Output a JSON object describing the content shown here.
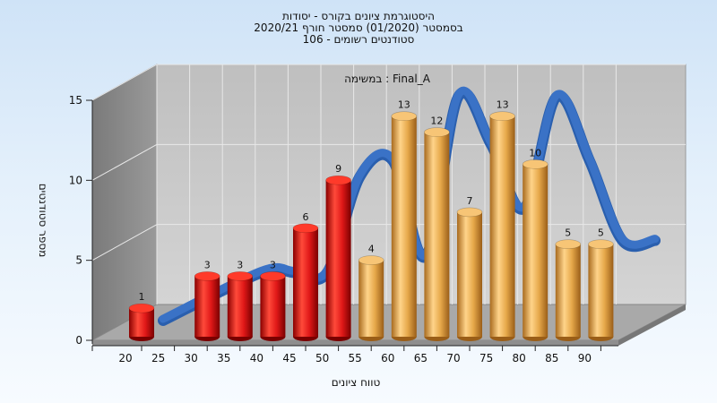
{
  "title_lines": [
    "היסטוגרמת ציונים בקורס - יסודות",
    "בסמסטר  (01/2020)  סמסטר חורף  2020/21",
    "סטודנטים רשומים - 106"
  ],
  "colors": {
    "below_threshold": "#e01818",
    "above_threshold": "#e6a84a",
    "curve": "#3a72c6",
    "wall": "#c6c6c6",
    "side_wall": "#8c8c8c",
    "floor": "#a9a9a9"
  },
  "chart_data": {
    "type": "bar",
    "annotation": "במשימה : Final_A",
    "xlabel": "טווח ציונים",
    "ylabel": "מספר סטודנטים",
    "ylim": [
      0,
      15
    ],
    "yticks": [
      "0",
      "5",
      "10",
      "15"
    ],
    "xticks": [
      "20",
      "25",
      "30",
      "35",
      "40",
      "45",
      "50",
      "55",
      "60",
      "65",
      "70",
      "75",
      "80",
      "85",
      "90"
    ],
    "bars": [
      {
        "x": 20,
        "value": 1,
        "label": "1",
        "group": "below_threshold"
      },
      {
        "x": 30,
        "value": 3,
        "label": "3",
        "group": "below_threshold"
      },
      {
        "x": 35,
        "value": 3,
        "label": "3",
        "group": "below_threshold"
      },
      {
        "x": 40,
        "value": 3,
        "label": "3",
        "group": "below_threshold"
      },
      {
        "x": 45,
        "value": 6,
        "label": "6",
        "group": "below_threshold"
      },
      {
        "x": 50,
        "value": 9,
        "label": "9",
        "group": "below_threshold"
      },
      {
        "x": 55,
        "value": 4,
        "label": "4",
        "group": "above_threshold"
      },
      {
        "x": 60,
        "value": 13,
        "label": "13",
        "group": "above_threshold"
      },
      {
        "x": 65,
        "value": 12,
        "label": "12",
        "group": "above_threshold"
      },
      {
        "x": 70,
        "value": 7,
        "label": "7",
        "group": "above_threshold"
      },
      {
        "x": 75,
        "value": 13,
        "label": "13",
        "group": "above_threshold"
      },
      {
        "x": 80,
        "value": 10,
        "label": "10",
        "group": "above_threshold"
      },
      {
        "x": 85,
        "value": 5,
        "label": "5",
        "group": "above_threshold"
      },
      {
        "x": 90,
        "value": 5,
        "label": "5",
        "group": "above_threshold"
      }
    ],
    "curve": [
      {
        "x": 20,
        "y": 0
      },
      {
        "x": 35,
        "y": 3
      },
      {
        "x": 40,
        "y": 3
      },
      {
        "x": 45,
        "y": 3
      },
      {
        "x": 50,
        "y": 9
      },
      {
        "x": 55,
        "y": 10
      },
      {
        "x": 60,
        "y": 4
      },
      {
        "x": 65,
        "y": 14
      },
      {
        "x": 70,
        "y": 11
      },
      {
        "x": 75,
        "y": 7
      },
      {
        "x": 80,
        "y": 14
      },
      {
        "x": 85,
        "y": 10
      },
      {
        "x": 90,
        "y": 5
      },
      {
        "x": 95,
        "y": 5
      }
    ]
  }
}
